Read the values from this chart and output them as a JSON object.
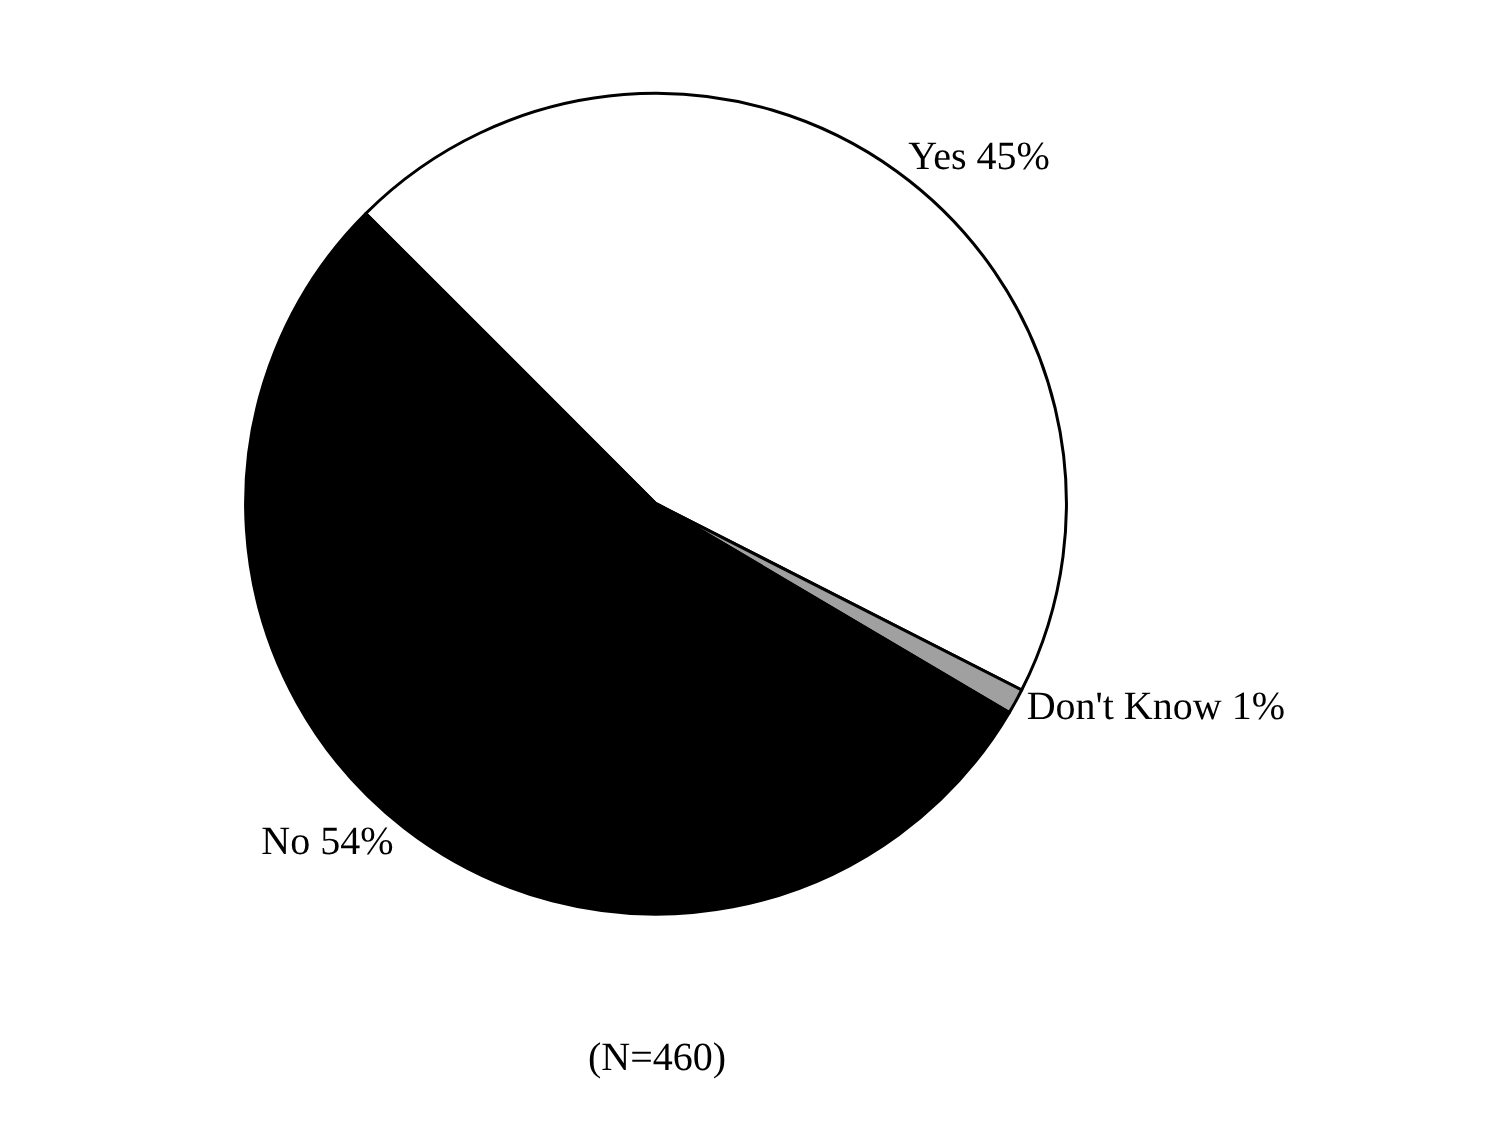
{
  "chart_data": {
    "type": "pie",
    "categories": [
      "Yes",
      "Don't Know",
      "No"
    ],
    "values": [
      45,
      1,
      54
    ],
    "value_labels": [
      "45%",
      "1%",
      "54%"
    ],
    "colors": [
      "#ffffff",
      "#a0a0a0",
      "#000000"
    ],
    "annotations": [
      "(N=460)"
    ],
    "legend": false
  }
}
